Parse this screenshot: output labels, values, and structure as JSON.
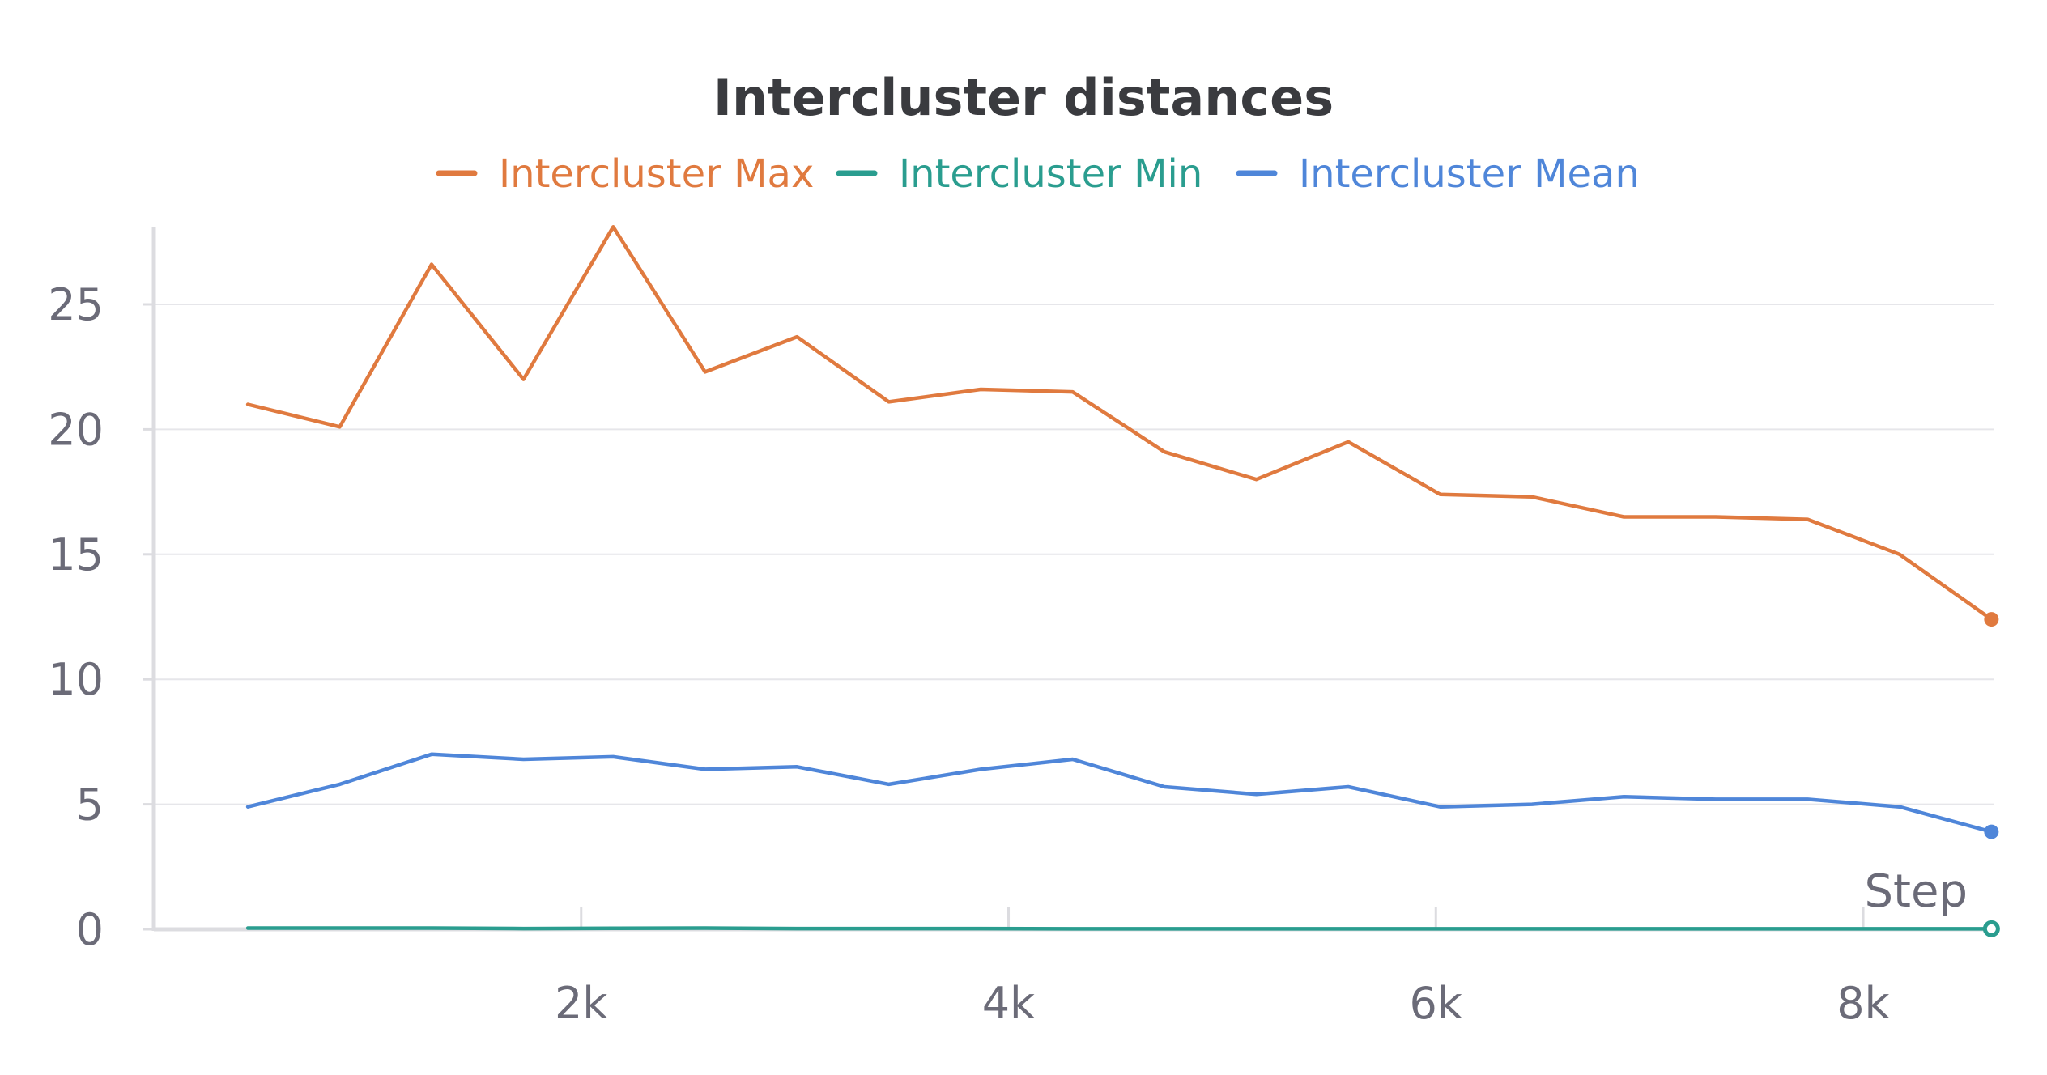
{
  "chart_data": {
    "type": "line",
    "title": "Intercluster distances",
    "xlabel": "Step",
    "ylabel": "",
    "xlim": [
      0,
      8610
    ],
    "ylim": [
      0,
      28
    ],
    "x_ticks": [
      2000,
      4000,
      6000,
      8000
    ],
    "x_tick_labels": [
      "2k",
      "4k",
      "6k",
      "8k"
    ],
    "y_ticks": [
      0,
      5,
      10,
      15,
      20,
      25
    ],
    "y_tick_labels": [
      "0",
      "5",
      "10",
      "15",
      "20",
      "25"
    ],
    "grid": "horizontal",
    "legend_placement": "top-center",
    "x": [
      440,
      870,
      1300,
      1730,
      2150,
      2580,
      3010,
      3440,
      3870,
      4300,
      4730,
      5160,
      5590,
      6020,
      6450,
      6880,
      7310,
      7740,
      8170,
      8600
    ],
    "series": [
      {
        "name": "Intercluster Max",
        "color": "#e07a3f",
        "values": [
          21.0,
          20.1,
          26.6,
          22.0,
          28.1,
          22.3,
          23.7,
          21.1,
          21.6,
          21.5,
          19.1,
          18.0,
          19.5,
          17.4,
          17.3,
          16.5,
          16.5,
          16.4,
          15.0,
          12.4
        ]
      },
      {
        "name": "Intercluster Min",
        "color": "#2a9d8f",
        "values": [
          0.05,
          0.05,
          0.05,
          0.03,
          0.04,
          0.05,
          0.03,
          0.03,
          0.03,
          0.02,
          0.02,
          0.02,
          0.02,
          0.02,
          0.02,
          0.02,
          0.02,
          0.02,
          0.02,
          0.02
        ]
      },
      {
        "name": "Intercluster Mean",
        "color": "#4f86d9",
        "values": [
          4.9,
          5.8,
          7.0,
          6.8,
          6.9,
          6.4,
          6.5,
          5.8,
          6.4,
          6.8,
          5.7,
          5.4,
          5.7,
          4.9,
          5.0,
          5.3,
          5.2,
          5.2,
          4.9,
          3.9
        ]
      }
    ]
  }
}
